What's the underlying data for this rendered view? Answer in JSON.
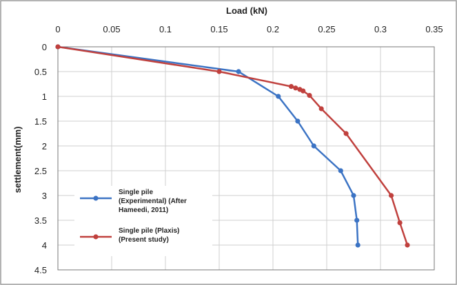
{
  "chart_data": {
    "type": "line",
    "xlabel": "Load (kN)",
    "ylabel": "settlement(mm)",
    "x_axis_position": "top",
    "y_axis_reversed": true,
    "xlim": [
      0,
      0.35
    ],
    "ylim": [
      0,
      4.5
    ],
    "x_ticks": [
      "0",
      "0.05",
      "0.1",
      "0.15",
      "0.2",
      "0.25",
      "0.3",
      "0.35"
    ],
    "y_ticks": [
      "0",
      "0.5",
      "1",
      "1.5",
      "2",
      "2.5",
      "3",
      "3.5",
      "4",
      "4.5"
    ],
    "grid": true,
    "legend_position": "bottom-left",
    "series": [
      {
        "name_lines": [
          "Single pile",
          "(Experimental) (After",
          "Hameedi, 2011)"
        ],
        "color": "#3b73c4",
        "points": [
          [
            0,
            0
          ],
          [
            0.168,
            0.5
          ],
          [
            0.205,
            1.0
          ],
          [
            0.223,
            1.5
          ],
          [
            0.238,
            2.0
          ],
          [
            0.263,
            2.5
          ],
          [
            0.275,
            3.0
          ],
          [
            0.278,
            3.5
          ],
          [
            0.279,
            4.0
          ]
        ]
      },
      {
        "name_lines": [
          "Single pile (Plaxis)",
          "(Present study)"
        ],
        "color": "#c0403d",
        "points": [
          [
            0,
            0
          ],
          [
            0.15,
            0.5
          ],
          [
            0.217,
            0.8
          ],
          [
            0.221,
            0.83
          ],
          [
            0.225,
            0.86
          ],
          [
            0.228,
            0.89
          ],
          [
            0.234,
            0.98
          ],
          [
            0.245,
            1.25
          ],
          [
            0.268,
            1.75
          ],
          [
            0.31,
            3.0
          ],
          [
            0.318,
            3.55
          ],
          [
            0.325,
            4.0
          ]
        ]
      }
    ]
  }
}
